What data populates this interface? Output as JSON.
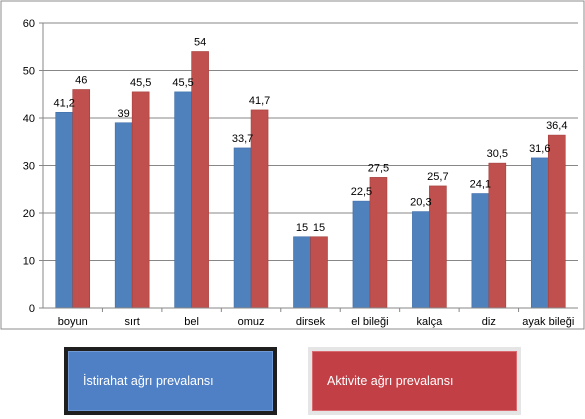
{
  "chart_data": {
    "type": "bar",
    "categories": [
      "boyun",
      "sırt",
      "bel",
      "omuz",
      "dirsek",
      "el bileği",
      "kalça",
      "diz",
      "ayak bileği"
    ],
    "series": [
      {
        "name": "İstirahat ağrı prevalansı",
        "color": "#4f81bd",
        "values": [
          41.2,
          39,
          45.5,
          33.7,
          15,
          22.5,
          20.3,
          24.1,
          31.6
        ],
        "labels": [
          "41,2",
          "39",
          "45,5",
          "33,7",
          "15",
          "22,5",
          "20,3",
          "24,1",
          "31,6"
        ]
      },
      {
        "name": "Aktivite ağrı prevalansı",
        "color": "#c0504d",
        "values": [
          46,
          45.5,
          54,
          41.7,
          15,
          27.5,
          25.7,
          30.5,
          36.4
        ],
        "labels": [
          "46",
          "45,5",
          "54",
          "41,7",
          "15",
          "27,5",
          "25,7",
          "30,5",
          "36,4"
        ]
      }
    ],
    "ylim": [
      0,
      60
    ],
    "yticks": [
      "0",
      "10",
      "20",
      "30",
      "40",
      "50",
      "60"
    ],
    "grid": true,
    "legend_position": "bottom"
  },
  "legend": {
    "rest_label": "İstirahat ağrı prevalansı",
    "activity_label": "Aktivite ağrı prevalansı"
  }
}
